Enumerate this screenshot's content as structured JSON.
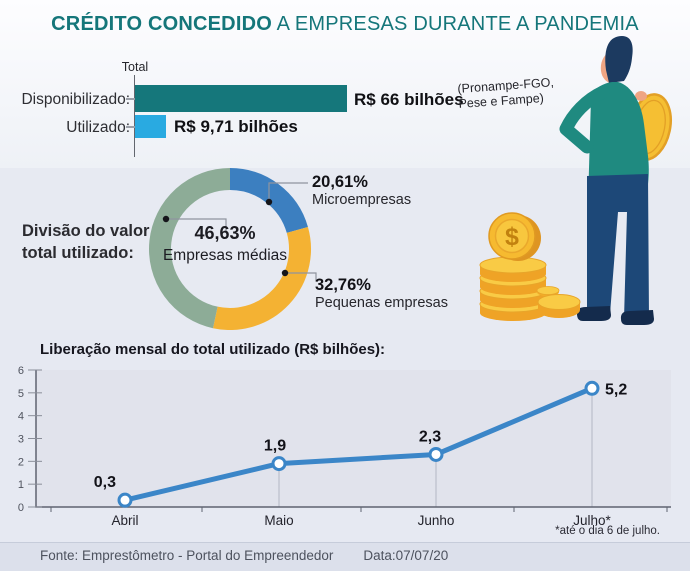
{
  "title": {
    "bold": "CRÉDITO CONCEDIDO",
    "rest": " A EMPRESAS DURANTE A PANDEMIA"
  },
  "bar_chart": {
    "axis_label": "Total",
    "rows": [
      {
        "label": "Disponibilizado:",
        "value_label": "R$ 66 bilhões"
      },
      {
        "label": "Utilizado:",
        "value_label": "R$ 9,71 bilhões"
      }
    ],
    "note_line1": "(Pronampe-FGO,",
    "note_line2": "Pese e Fampe)"
  },
  "donut_caption": {
    "line1": "Divisão do valor",
    "line2": "total utilizado:"
  },
  "footer": {
    "source": "Fonte:  Emprestômetro - Portal do Empreendedor",
    "date": "Data:07/07/20"
  },
  "colors": {
    "teal": "#15777b",
    "light_blue": "#29aae1",
    "donut_blue": "#3c7fc0",
    "donut_yellow": "#f4b233",
    "donut_green": "#8dac97",
    "line_blue": "#3b86c8"
  },
  "chart_data": [
    {
      "type": "bar",
      "orientation": "horizontal",
      "title": "",
      "axis_title": "Total",
      "categories": [
        "Disponibilizado",
        "Utilizado"
      ],
      "values": [
        66,
        9.71
      ],
      "value_labels": [
        "R$ 66 bilhões",
        "R$ 9,71 bilhões"
      ],
      "unit": "R$ bilhões",
      "note": "(Pronampe-FGO, Pese e Fampe)",
      "colors": [
        "#15777b",
        "#29aae1"
      ],
      "xlim": [
        0,
        66
      ]
    },
    {
      "type": "pie",
      "donut": true,
      "title": "Divisão do valor total utilizado:",
      "start_angle_deg": 0,
      "direction": "clockwise",
      "slices": [
        {
          "label": "Microempresas",
          "value": 20.61,
          "display": "20,61%",
          "color": "#3c7fc0"
        },
        {
          "label": "Pequenas empresas",
          "value": 32.76,
          "display": "32,76%",
          "color": "#f4b233"
        },
        {
          "label": "Empresas médias",
          "value": 46.63,
          "display": "46,63%",
          "color": "#8dac97"
        }
      ]
    },
    {
      "type": "line",
      "title": "Liberação mensal do total utilizado (R$ bilhões):",
      "x": [
        "Abril",
        "Maio",
        "Junho",
        "Julho*"
      ],
      "values": [
        0.3,
        1.9,
        2.3,
        5.2
      ],
      "point_labels": [
        "0,3",
        "1,9",
        "2,3",
        "5,2"
      ],
      "ylim": [
        0,
        6
      ],
      "yticks": [
        0,
        1,
        2,
        3,
        4,
        5,
        6
      ],
      "grid": false,
      "legend": "none",
      "footnote": "*até o dia 6 de julho.",
      "color": "#3b86c8"
    }
  ]
}
